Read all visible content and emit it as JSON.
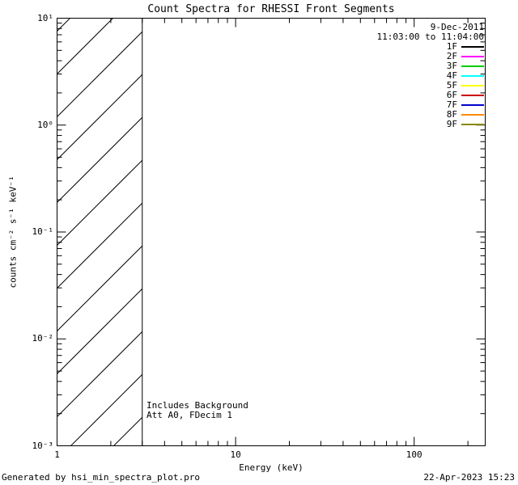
{
  "page": {
    "footer_left": "Generated by hsi_min_spectra_plot.pro",
    "footer_right": "22-Apr-2023 15:23"
  },
  "chart_data": {
    "type": "line",
    "title": "Count Spectra for RHESSI Front Segments",
    "xlabel": "Energy (keV)",
    "ylabel": "counts cm⁻² s⁻¹ keV⁻¹",
    "xscale": "log",
    "yscale": "log",
    "xlim": [
      1,
      250
    ],
    "ylim": [
      0.001,
      10
    ],
    "x_major_ticks": [
      1,
      10,
      100
    ],
    "x_tick_labels": [
      "1",
      "10",
      "100"
    ],
    "y_major_ticks": [
      0.001,
      0.01,
      0.1,
      1,
      10
    ],
    "y_tick_labels": [
      "10⁻³",
      "10⁻²",
      "10⁻¹",
      "10⁰",
      "10¹"
    ],
    "grid": false,
    "series": [],
    "hatched_region": {
      "x_min_kev": 1,
      "x_max_kev": 3,
      "style": "diagonal-hatch"
    },
    "annotations": [
      "Includes Background",
      "Att A0, FDecim 1"
    ],
    "legend": {
      "position": "top-right-inside",
      "date": "9-Dec-2011",
      "time_range": "11:03:00 to 11:04:00",
      "entries": [
        {
          "label": "1F",
          "color": "#000000"
        },
        {
          "label": "2F",
          "color": "#ff00ff"
        },
        {
          "label": "3F",
          "color": "#00cc00"
        },
        {
          "label": "4F",
          "color": "#00ffff"
        },
        {
          "label": "5F",
          "color": "#ffff00"
        },
        {
          "label": "6F",
          "color": "#cc0000"
        },
        {
          "label": "7F",
          "color": "#0000cc"
        },
        {
          "label": "8F",
          "color": "#ff8800"
        },
        {
          "label": "9F",
          "color": "#888800"
        }
      ]
    }
  }
}
